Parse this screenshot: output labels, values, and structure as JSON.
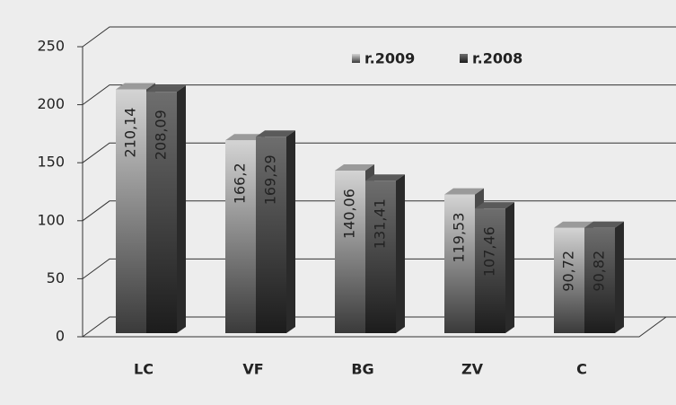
{
  "chart_data": {
    "type": "bar3d",
    "categories": [
      "LC",
      "VF",
      "BG",
      "ZV",
      "C"
    ],
    "series": [
      {
        "name": "r.2009",
        "color": "#d4d4d4",
        "values": [
          210.14,
          166.2,
          140.06,
          119.53,
          90.72
        ],
        "value_labels": [
          "210,14",
          "166,2",
          "140,06",
          "119,53",
          "90,72"
        ]
      },
      {
        "name": "r.2008",
        "color": "#6e6e6e",
        "values": [
          208.09,
          169.29,
          131.41,
          107.46,
          90.82
        ],
        "value_labels": [
          "208,09",
          "169,29",
          "131,41",
          "107,46",
          "90,82"
        ]
      }
    ],
    "ylim": [
      0,
      250
    ],
    "yticks": [
      0,
      50,
      100,
      150,
      200,
      250
    ],
    "grid": true,
    "legend": "top"
  }
}
